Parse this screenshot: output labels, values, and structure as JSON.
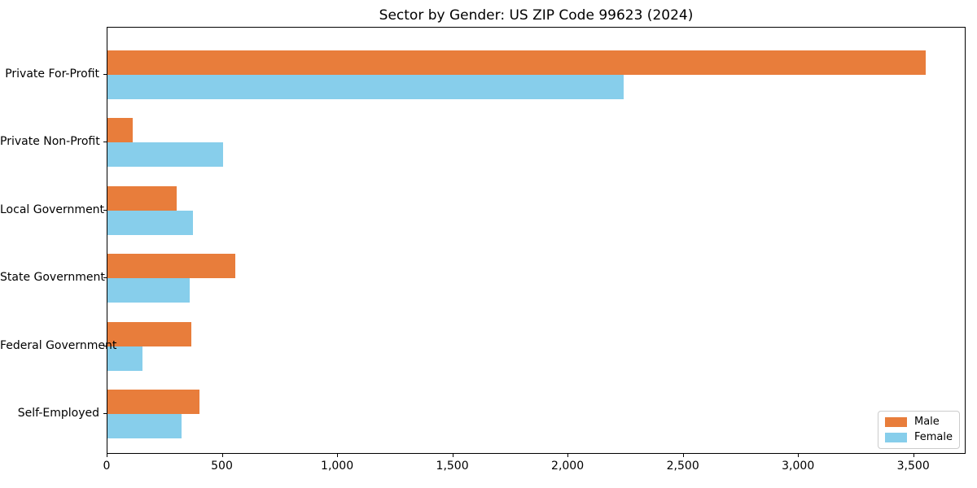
{
  "chart_data": {
    "type": "bar",
    "orientation": "horizontal",
    "title": "Sector by Gender: US ZIP Code 99623 (2024)",
    "xlabel": "",
    "ylabel": "",
    "categories": [
      "Private For-Profit",
      "Private Non-Profit",
      "Local Government",
      "State Government",
      "Federal Government",
      "Self-Employed"
    ],
    "series": [
      {
        "name": "Male",
        "color": "#E87D3B",
        "values": [
          3550,
          110,
          300,
          555,
          365,
          400
        ]
      },
      {
        "name": "Female",
        "color": "#87CEEB",
        "values": [
          2240,
          500,
          370,
          355,
          150,
          320
        ]
      }
    ],
    "xlim": [
      0,
      3727
    ],
    "x_ticks": [
      0,
      500,
      1000,
      1500,
      2000,
      2500,
      3000,
      3500
    ],
    "x_tick_labels": [
      "0",
      "500",
      "1,000",
      "1,500",
      "2,000",
      "2,500",
      "3,000",
      "3,500"
    ],
    "grid": false,
    "legend_position": "lower right",
    "spine_color": "#000000",
    "background_color": "#ffffff"
  }
}
